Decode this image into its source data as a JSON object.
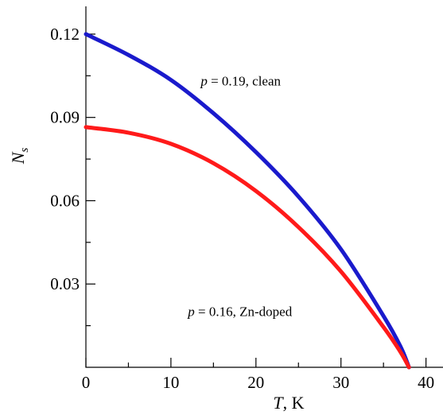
{
  "chart_data": {
    "type": "line",
    "xlabel": {
      "var": "T",
      "unit": ", K"
    },
    "ylabel": {
      "var": "N",
      "sub": "s"
    },
    "xlim": [
      0,
      42
    ],
    "ylim": [
      0,
      0.13
    ],
    "xticks": [
      0,
      10,
      20,
      30,
      40
    ],
    "xtick_labels": [
      "0",
      "10",
      "20",
      "30",
      "40"
    ],
    "yticks": [
      0.03,
      0.06,
      0.09,
      0.12
    ],
    "ytick_labels": [
      "0.03",
      "0.06",
      "0.09",
      "0.12"
    ],
    "grid": false,
    "series": [
      {
        "name": "p = 0.19, clean",
        "color": "#1a1acc",
        "x": [
          0,
          5,
          10,
          15,
          20,
          25,
          30,
          35,
          37,
          38
        ],
        "y": [
          0.12,
          0.1125,
          0.1035,
          0.0915,
          0.0775,
          0.0615,
          0.0425,
          0.0185,
          0.0075,
          0.0
        ]
      },
      {
        "name": "p = 0.16, Zn-doped",
        "color": "#ff1a1a",
        "x": [
          0,
          5,
          10,
          15,
          20,
          25,
          30,
          35,
          37,
          38
        ],
        "y": [
          0.0865,
          0.0845,
          0.0805,
          0.0735,
          0.0635,
          0.0505,
          0.0345,
          0.0145,
          0.0055,
          0.0
        ]
      }
    ],
    "annotations": [
      {
        "var": "p",
        "text": " = 0.19, clean",
        "at_data": [
          13.5,
          0.1015
        ]
      },
      {
        "var": "p",
        "text": " = 0.16, Zn-doped",
        "at_data": [
          12.0,
          0.0185
        ]
      }
    ]
  }
}
